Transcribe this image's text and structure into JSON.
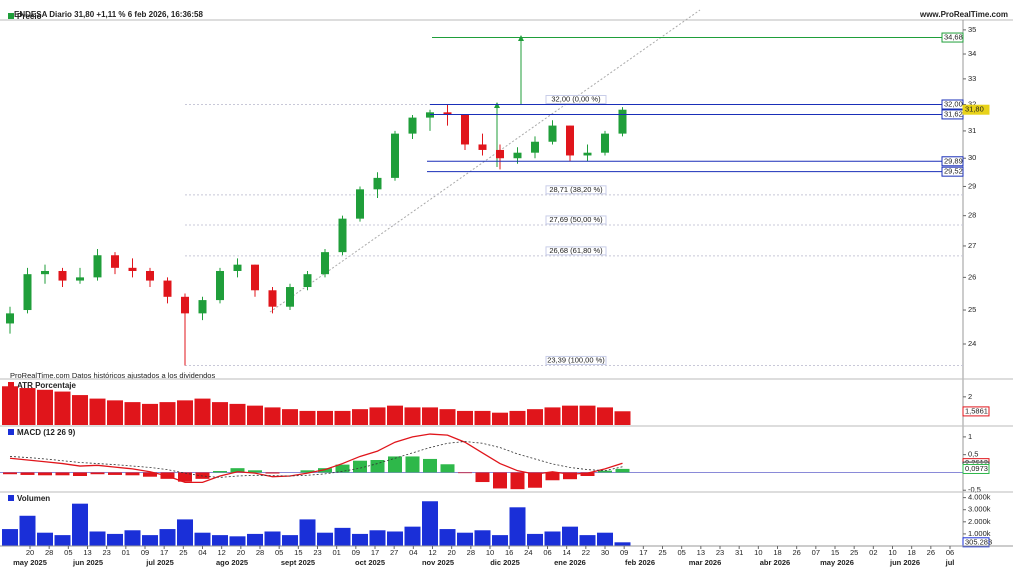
{
  "header": {
    "title": "ENDESA Diario 31,80 +1,11 % 6 feb 2026, 16:36:58",
    "site": "www.ProRealTime.com"
  },
  "chart_data": [
    {
      "type": "candlestick",
      "title": "Precio",
      "note": "ProRealTime.com Datos históricos ajustados a los dividendos",
      "log_scale": true,
      "ylim": [
        23.04,
        35.76
      ],
      "yticks": [
        24,
        25,
        26,
        27,
        28,
        29,
        30,
        31,
        32,
        33,
        34,
        35
      ],
      "up_color": "#1f9e3a",
      "down_color": "#e0151b",
      "candles": [
        [
          24.6,
          25.1,
          24.3,
          24.9
        ],
        [
          25.0,
          26.3,
          24.9,
          26.1
        ],
        [
          26.1,
          26.4,
          25.8,
          26.2
        ],
        [
          26.2,
          26.3,
          25.7,
          25.9
        ],
        [
          25.9,
          26.3,
          25.8,
          26.0
        ],
        [
          26.0,
          26.9,
          25.9,
          26.7
        ],
        [
          26.7,
          26.8,
          26.1,
          26.3
        ],
        [
          26.3,
          26.6,
          26.0,
          26.2
        ],
        [
          26.2,
          26.3,
          25.7,
          25.9
        ],
        [
          25.9,
          26.0,
          25.2,
          25.4
        ],
        [
          25.4,
          25.5,
          23.39,
          24.9
        ],
        [
          24.9,
          25.4,
          24.7,
          25.3
        ],
        [
          25.3,
          26.3,
          25.2,
          26.2
        ],
        [
          26.2,
          26.6,
          26.0,
          26.4
        ],
        [
          26.4,
          26.4,
          25.4,
          25.6
        ],
        [
          25.6,
          25.7,
          24.9,
          25.1
        ],
        [
          25.1,
          25.8,
          25.0,
          25.7
        ],
        [
          25.7,
          26.2,
          25.6,
          26.1
        ],
        [
          26.1,
          26.9,
          26.0,
          26.8
        ],
        [
          26.8,
          28.0,
          26.7,
          27.9
        ],
        [
          27.9,
          29.0,
          27.8,
          28.9
        ],
        [
          28.9,
          29.5,
          28.6,
          29.3
        ],
        [
          29.3,
          31.0,
          29.2,
          30.9
        ],
        [
          30.9,
          31.6,
          30.7,
          31.5
        ],
        [
          31.5,
          31.8,
          31.0,
          31.7
        ],
        [
          31.7,
          32.0,
          31.2,
          31.6
        ],
        [
          31.6,
          31.6,
          30.3,
          30.5
        ],
        [
          30.5,
          30.9,
          30.1,
          30.3
        ],
        [
          30.3,
          30.5,
          29.6,
          30.0
        ],
        [
          30.0,
          30.4,
          29.8,
          30.2
        ],
        [
          30.2,
          30.8,
          30.0,
          30.6
        ],
        [
          30.6,
          31.4,
          30.5,
          31.2
        ],
        [
          31.2,
          31.2,
          29.9,
          30.1
        ],
        [
          30.1,
          30.5,
          29.9,
          30.2
        ],
        [
          30.2,
          31.0,
          30.1,
          30.9
        ],
        [
          30.9,
          31.9,
          30.8,
          31.8
        ]
      ],
      "levels": [
        {
          "value": 34.68,
          "label": "34,68",
          "color": "#1f9e3a"
        },
        {
          "value": 32.0,
          "label": "32,00",
          "color": "#1a2fb8"
        },
        {
          "value": 31.62,
          "label": "31,62",
          "color": "#1a2fb8"
        },
        {
          "value": 31.8,
          "label": "31,80",
          "color": "#e8d21a"
        },
        {
          "value": 29.89,
          "label": "29,89",
          "color": "#1a2fb8"
        },
        {
          "value": 29.52,
          "label": "29,52",
          "color": "#1a2fb8"
        }
      ],
      "fibonacci": [
        {
          "value": 32.0,
          "label": "32,00 (0,00 %)"
        },
        {
          "value": 28.71,
          "label": "28,71 (38,20 %)"
        },
        {
          "value": 27.69,
          "label": "27,69 (50,00 %)"
        },
        {
          "value": 26.68,
          "label": "26,68 (61,80 %)"
        },
        {
          "value": 23.39,
          "label": "23,39 (100,00 %)"
        }
      ]
    },
    {
      "type": "bar",
      "title": "ATR Porcentaje",
      "color": "#e0151b",
      "ylim": [
        1.2,
        2.45
      ],
      "yticks": [
        2
      ],
      "values": [
        2.3,
        2.25,
        2.2,
        2.15,
        2.05,
        1.95,
        1.9,
        1.85,
        1.8,
        1.85,
        1.9,
        1.95,
        1.85,
        1.8,
        1.75,
        1.7,
        1.65,
        1.6,
        1.6,
        1.6,
        1.65,
        1.7,
        1.75,
        1.7,
        1.7,
        1.65,
        1.6,
        1.6,
        1.55,
        1.6,
        1.65,
        1.7,
        1.75,
        1.75,
        1.7,
        1.59
      ],
      "levels": [
        {
          "value": 1.5861,
          "label": "1,5861",
          "color": "#e0151b"
        }
      ]
    },
    {
      "type": "macd",
      "title": "MACD (12 26 9)",
      "ylim": [
        -0.55,
        1.25
      ],
      "yticks": [
        {
          "value": -0.5,
          "label": "-0,5"
        },
        {
          "value": 0.5,
          "label": "0,5"
        },
        1
      ],
      "macd": {
        "color": "#e0151b",
        "values": [
          0.4,
          0.35,
          0.3,
          0.25,
          0.18,
          0.2,
          0.15,
          0.1,
          0.02,
          -0.1,
          -0.28,
          -0.28,
          -0.1,
          0.02,
          -0.02,
          -0.12,
          -0.1,
          -0.02,
          0.08,
          0.25,
          0.45,
          0.6,
          0.85,
          1.0,
          1.08,
          1.05,
          0.85,
          0.55,
          0.25,
          0.05,
          -0.05,
          0.02,
          -0.05,
          -0.02,
          0.1,
          0.26
        ]
      },
      "signal": {
        "color": "#333333",
        "values": [
          0.45,
          0.42,
          0.38,
          0.33,
          0.28,
          0.25,
          0.22,
          0.18,
          0.14,
          0.08,
          -0.02,
          -0.1,
          -0.14,
          -0.1,
          -0.08,
          -0.09,
          -0.1,
          -0.08,
          -0.04,
          0.03,
          0.12,
          0.25,
          0.4,
          0.55,
          0.7,
          0.82,
          0.87,
          0.82,
          0.7,
          0.52,
          0.38,
          0.24,
          0.14,
          0.08,
          0.05,
          0.16
        ]
      },
      "histogram": {
        "up_color": "#2eb84a",
        "down_color": "#e0151b",
        "values": [
          -0.05,
          -0.07,
          -0.08,
          -0.08,
          -0.1,
          -0.05,
          -0.07,
          -0.08,
          -0.12,
          -0.18,
          -0.26,
          -0.18,
          0.04,
          0.12,
          0.06,
          -0.03,
          0.0,
          0.06,
          0.12,
          0.22,
          0.33,
          0.35,
          0.45,
          0.45,
          0.38,
          0.23,
          -0.02,
          -0.27,
          -0.45,
          -0.47,
          -0.43,
          -0.22,
          -0.19,
          -0.1,
          0.05,
          0.1
        ]
      },
      "levels": [
        {
          "value": 0.2612,
          "label": "0,2612",
          "color": "#e0151b"
        },
        {
          "value": 0.1639,
          "label": "0,1639",
          "color": "#333333"
        },
        {
          "value": 0.0973,
          "label": "0,0973",
          "color": "#2eb84a"
        }
      ]
    },
    {
      "type": "bar",
      "title": "Volumen",
      "color": "#1a2fd8",
      "ylim": [
        0,
        4300000
      ],
      "yticks": [
        {
          "value": 1000000,
          "label": "1.000k"
        },
        {
          "value": 2000000,
          "label": "2.000k"
        },
        {
          "value": 3000000,
          "label": "3.000k"
        },
        {
          "value": 4000000,
          "label": "4.000k"
        }
      ],
      "values": [
        1400000,
        2500000,
        1100000,
        900000,
        3500000,
        1200000,
        1000000,
        1300000,
        900000,
        1400000,
        2200000,
        1100000,
        900000,
        800000,
        1000000,
        1200000,
        900000,
        2200000,
        1100000,
        1500000,
        1000000,
        1300000,
        1200000,
        1600000,
        3700000,
        1400000,
        1100000,
        1300000,
        900000,
        3200000,
        1000000,
        1200000,
        1600000,
        900000,
        1100000,
        305283
      ],
      "levels": [
        {
          "value": 305283,
          "label": "305.283",
          "color": "#1a2fd8"
        }
      ]
    }
  ],
  "x_axis": {
    "days": [
      "20",
      "28",
      "05",
      "13",
      "23",
      "01",
      "09",
      "17",
      "25",
      "04",
      "12",
      "20",
      "28",
      "05",
      "15",
      "23",
      "01",
      "09",
      "17",
      "27",
      "04",
      "12",
      "20",
      "28",
      "10",
      "16",
      "24",
      "06",
      "14",
      "22",
      "30",
      "09",
      "17",
      "25",
      "05",
      "13",
      "23",
      "31",
      "10",
      "18",
      "26",
      "07",
      "15",
      "25",
      "02",
      "10",
      "18",
      "26",
      "06"
    ],
    "months": [
      "may 2025",
      "jun 2025",
      "jul 2025",
      "ago 2025",
      "sept 2025",
      "oct 2025",
      "nov 2025",
      "dic 2025",
      "ene 2026",
      "feb 2026",
      "mar 2026",
      "abr 2026",
      "may 2026",
      "jun 2026",
      "jul"
    ]
  }
}
